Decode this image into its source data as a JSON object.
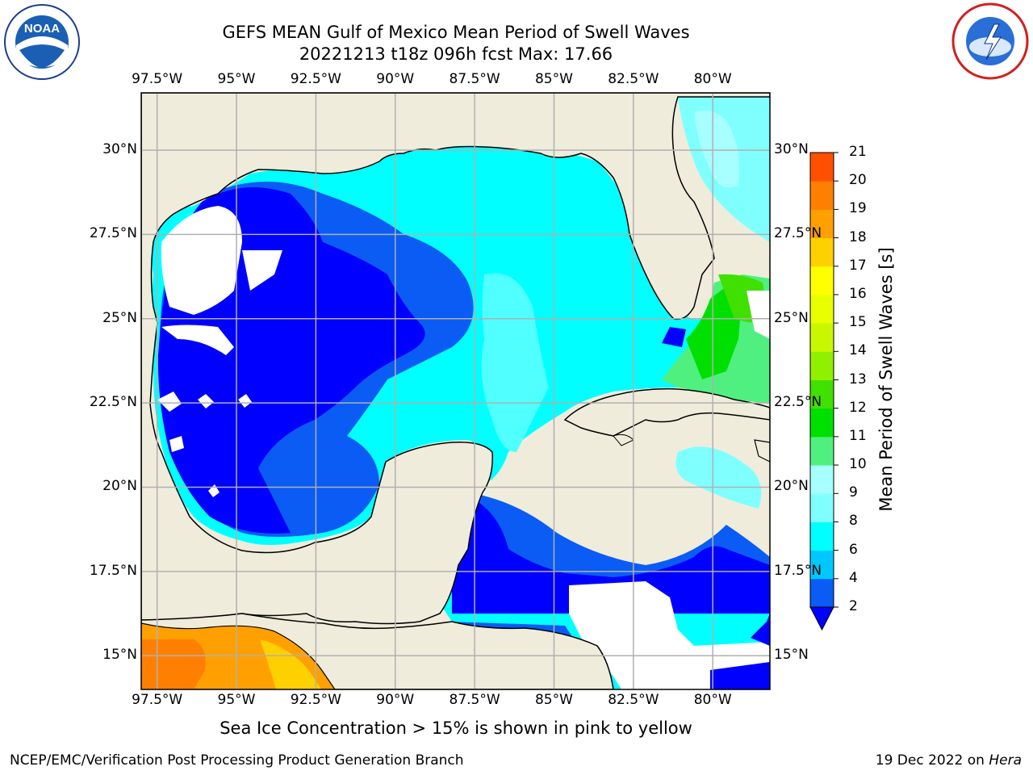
{
  "header": {
    "title_line1": "GEFS MEAN Gulf of Mexico Mean Period of Swell Waves",
    "title_line2": "20221213 t18z 096h fcst   Max: 17.66"
  },
  "logos": {
    "left_name": "NOAA",
    "right_name": "NATIONAL WEATHER SERVICE"
  },
  "map": {
    "lon_labels": [
      "97.5°W",
      "95°W",
      "92.5°W",
      "90°W",
      "87.5°W",
      "85°W",
      "82.5°W",
      "80°W"
    ],
    "lat_labels": [
      "30°N",
      "27.5°N",
      "25°N",
      "22.5°N",
      "20°N",
      "17.5°N",
      "15°N"
    ],
    "lon_values": [
      -97.5,
      -95,
      -92.5,
      -90,
      -87.5,
      -85,
      -82.5,
      -80
    ],
    "lat_values": [
      30,
      27.5,
      25,
      22.5,
      20,
      17.5,
      15
    ],
    "extent": {
      "lon_min": -98,
      "lon_max": -78.2,
      "lat_min": 14,
      "lat_max": 31.7
    },
    "land_color": "#efecdc",
    "grid_color": "#b0b0b0"
  },
  "colorbar": {
    "title": "Mean Period of Swell Waves [s]",
    "tick_labels": [
      "2",
      "4",
      "6",
      "8",
      "9",
      "10",
      "11",
      "12",
      "13",
      "14",
      "15",
      "16",
      "17",
      "18",
      "19",
      "20",
      "21"
    ],
    "colors": [
      "#0a5cf5",
      "#00c8ff",
      "#00ffff",
      "#80ffff",
      "#a8ffff",
      "#50f080",
      "#00e000",
      "#40e000",
      "#90f000",
      "#c8f800",
      "#e8ff00",
      "#ffff00",
      "#ffd000",
      "#ffa000",
      "#ff8000",
      "#ff5000",
      "#ff2000",
      "#ff0000"
    ],
    "under_color": "#0000ff"
  },
  "note": "Sea Ice Concentration > 15% is shown in pink to yellow",
  "footer": {
    "left": "NCEP/EMC/Verification Post Processing Product Generation Branch",
    "right_prefix": "19 Dec 2022 on ",
    "right_host": "Hera"
  }
}
